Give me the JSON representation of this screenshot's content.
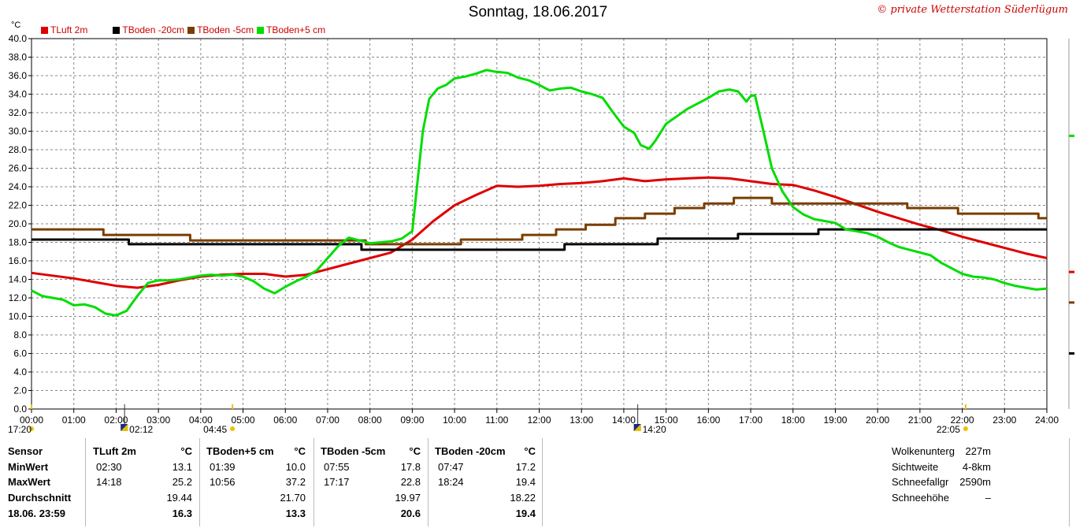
{
  "title": "Sonntag, 18.06.2017",
  "copyright": "© private Wetterstation Süderlügum",
  "unit_label": "°C",
  "chart_data": {
    "type": "line",
    "x_unit": "hours",
    "xlim": [
      0,
      24
    ],
    "ylim": [
      0,
      40
    ],
    "yticks": [
      "0.0",
      "2.0",
      "4.0",
      "6.0",
      "8.0",
      "10.0",
      "12.0",
      "14.0",
      "16.0",
      "18.0",
      "20.0",
      "22.0",
      "24.0",
      "26.0",
      "28.0",
      "30.0",
      "32.0",
      "34.0",
      "36.0",
      "38.0",
      "40.0"
    ],
    "xticks": [
      "00:00",
      "01:00",
      "02:00",
      "03:00",
      "04:00",
      "05:00",
      "06:00",
      "07:00",
      "08:00",
      "09:00",
      "10:00",
      "11:00",
      "12:00",
      "13:00",
      "14:00",
      "15:00",
      "16:00",
      "17:00",
      "18:00",
      "19:00",
      "20:00",
      "21:00",
      "22:00",
      "23:00",
      "24:00"
    ],
    "grid": true,
    "markers": [
      {
        "time": 0.0,
        "label": "17:20",
        "type": "sunset"
      },
      {
        "time": 2.2,
        "label": "02:12",
        "type": "tide"
      },
      {
        "time": 4.75,
        "label": "04:45",
        "type": "sunrise"
      },
      {
        "time": 14.33,
        "label": "14:20",
        "type": "tide"
      },
      {
        "time": 22.08,
        "label": "22:05",
        "type": "sunset"
      }
    ],
    "series": [
      {
        "name": "TLuft 2m",
        "color": "#dd0000",
        "x": [
          0,
          0.5,
          1,
          1.5,
          2,
          2.5,
          3,
          3.5,
          4,
          4.5,
          5,
          5.5,
          6,
          6.5,
          7,
          7.5,
          8,
          8.5,
          9,
          9.5,
          10,
          10.5,
          11,
          11.5,
          12,
          12.5,
          13,
          13.5,
          14,
          14.5,
          15,
          15.5,
          16,
          16.5,
          17,
          17.5,
          18,
          18.5,
          19,
          19.5,
          20,
          20.5,
          21,
          21.5,
          22,
          22.5,
          23,
          23.5,
          24
        ],
        "y": [
          14.7,
          14.4,
          14.1,
          13.7,
          13.3,
          13.1,
          13.4,
          13.9,
          14.3,
          14.5,
          14.6,
          14.6,
          14.3,
          14.5,
          15.1,
          15.7,
          16.3,
          16.9,
          18.3,
          20.3,
          22.0,
          23.1,
          24.1,
          24.0,
          24.1,
          24.3,
          24.4,
          24.6,
          24.9,
          24.6,
          24.8,
          24.9,
          25.0,
          24.9,
          24.6,
          24.3,
          24.2,
          23.6,
          22.9,
          22.1,
          21.3,
          20.6,
          19.9,
          19.3,
          18.6,
          18.0,
          17.4,
          16.8,
          16.3
        ]
      },
      {
        "name": "TBoden -20cm",
        "color": "#000000",
        "x": [
          0,
          2.3,
          2.3,
          7.8,
          7.8,
          12.6,
          12.6,
          14.8,
          14.8,
          16.7,
          16.7,
          18.6,
          18.6,
          24
        ],
        "y": [
          18.3,
          18.3,
          17.8,
          17.8,
          17.2,
          17.2,
          17.8,
          17.8,
          18.4,
          18.4,
          18.9,
          18.9,
          19.4,
          19.4
        ]
      },
      {
        "name": "TBoden -5cm",
        "color": "#7a3d00",
        "x": [
          0,
          1.7,
          1.7,
          3.75,
          3.75,
          7.9,
          7.9,
          10.15,
          10.15,
          11.6,
          11.6,
          12.4,
          12.4,
          13.1,
          13.1,
          13.8,
          13.8,
          14.5,
          14.5,
          15.2,
          15.2,
          15.9,
          15.9,
          16.6,
          16.6,
          17.5,
          17.5,
          18.9,
          18.9,
          20.7,
          20.7,
          21.9,
          21.9,
          23.8,
          23.8,
          24
        ],
        "y": [
          19.4,
          19.4,
          18.8,
          18.8,
          18.2,
          18.2,
          17.8,
          17.8,
          18.3,
          18.3,
          18.8,
          18.8,
          19.4,
          19.4,
          19.9,
          19.9,
          20.6,
          20.6,
          21.1,
          21.1,
          21.7,
          21.7,
          22.2,
          22.2,
          22.8,
          22.8,
          22.2,
          22.2,
          22.2,
          22.2,
          21.7,
          21.7,
          21.1,
          21.1,
          20.6,
          20.6
        ]
      },
      {
        "name": "TBoden+5 cm",
        "color": "#00dd00",
        "x": [
          0,
          0.25,
          0.5,
          0.75,
          1,
          1.25,
          1.5,
          1.75,
          2,
          2.25,
          2.5,
          2.75,
          3,
          3.25,
          3.5,
          3.75,
          4,
          4.25,
          4.5,
          4.75,
          5,
          5.25,
          5.5,
          5.75,
          6,
          6.25,
          6.5,
          6.75,
          7,
          7.25,
          7.5,
          7.75,
          8,
          8.25,
          8.5,
          8.75,
          9,
          9.1,
          9.25,
          9.4,
          9.6,
          9.8,
          10,
          10.25,
          10.5,
          10.75,
          11,
          11.25,
          11.5,
          11.75,
          12,
          12.25,
          12.5,
          12.75,
          13,
          13.25,
          13.5,
          13.75,
          14,
          14.25,
          14.4,
          14.6,
          14.75,
          15,
          15.25,
          15.5,
          15.75,
          16,
          16.25,
          16.5,
          16.7,
          16.9,
          17.0,
          17.1,
          17.3,
          17.5,
          17.75,
          18,
          18.25,
          18.5,
          18.75,
          19,
          19.25,
          19.5,
          19.75,
          20,
          20.25,
          20.5,
          20.75,
          21,
          21.25,
          21.5,
          21.75,
          22,
          22.25,
          22.5,
          22.75,
          23,
          23.25,
          23.5,
          23.75,
          24
        ],
        "y": [
          12.8,
          12.2,
          12.0,
          11.8,
          11.2,
          11.3,
          11.0,
          10.3,
          10.1,
          10.6,
          12.2,
          13.6,
          13.9,
          13.9,
          14.0,
          14.2,
          14.4,
          14.5,
          14.4,
          14.5,
          14.3,
          13.8,
          13.0,
          12.5,
          13.2,
          13.8,
          14.3,
          15.0,
          16.3,
          17.6,
          18.5,
          18.2,
          17.9,
          18.0,
          18.1,
          18.4,
          19.2,
          23.5,
          30.0,
          33.5,
          34.6,
          35.0,
          35.7,
          35.9,
          36.2,
          36.6,
          36.4,
          36.3,
          35.8,
          35.5,
          35.0,
          34.4,
          34.6,
          34.7,
          34.3,
          34.0,
          33.6,
          32.0,
          30.5,
          29.8,
          28.5,
          28.1,
          29.0,
          30.8,
          31.6,
          32.4,
          33.0,
          33.6,
          34.3,
          34.5,
          34.3,
          33.2,
          33.8,
          33.9,
          30.0,
          26.0,
          23.5,
          21.8,
          21.0,
          20.5,
          20.3,
          20.1,
          19.4,
          19.2,
          19.0,
          18.6,
          18.0,
          17.5,
          17.2,
          16.9,
          16.6,
          15.8,
          15.2,
          14.6,
          14.3,
          14.2,
          14.0,
          13.6,
          13.3,
          13.1,
          12.9,
          13.0
        ]
      }
    ],
    "right_indicators": [
      {
        "color": "#00dd00",
        "value": 29.5
      },
      {
        "color": "#dd0000",
        "value": 14.8
      },
      {
        "color": "#7a3d00",
        "value": 11.5
      },
      {
        "color": "#000000",
        "value": 6.0
      }
    ]
  },
  "legend": [
    {
      "label": "TLuft 2m",
      "color": "#dd0000"
    },
    {
      "label": "TBoden -20cm",
      "color": "#000000"
    },
    {
      "label": "TBoden -5cm",
      "color": "#7a3d00"
    },
    {
      "label": "TBoden+5 cm",
      "color": "#00dd00"
    }
  ],
  "stats": {
    "labels": {
      "sensor": "Sensor",
      "min": "MinWert",
      "max": "MaxWert",
      "avg": "Durchschnitt",
      "last": "18.06. 23:59"
    },
    "columns": [
      {
        "name": "TLuft 2m",
        "unit": "°C",
        "min_time": "02:30",
        "min": "13.1",
        "max_time": "14:18",
        "max": "25.2",
        "avg": "19.44",
        "last": "16.3"
      },
      {
        "name": "TBoden+5 cm",
        "unit": "°C",
        "min_time": "01:39",
        "min": "10.0",
        "max_time": "10:56",
        "max": "37.2",
        "avg": "21.70",
        "last": "13.3"
      },
      {
        "name": "TBoden -5cm",
        "unit": "°C",
        "min_time": "07:55",
        "min": "17.8",
        "max_time": "17:17",
        "max": "22.8",
        "avg": "19.97",
        "last": "20.6"
      },
      {
        "name": "TBoden -20cm",
        "unit": "°C",
        "min_time": "07:47",
        "min": "17.2",
        "max_time": "18:24",
        "max": "19.4",
        "avg": "18.22",
        "last": "19.4"
      }
    ],
    "extras": [
      {
        "label": "Wolkenunterg",
        "value": "227m"
      },
      {
        "label": "Sichtweite",
        "value": "4-8km"
      },
      {
        "label": "Schneefallgr",
        "value": "2590m"
      },
      {
        "label": "Schneehöhe",
        "value": "–"
      }
    ]
  }
}
